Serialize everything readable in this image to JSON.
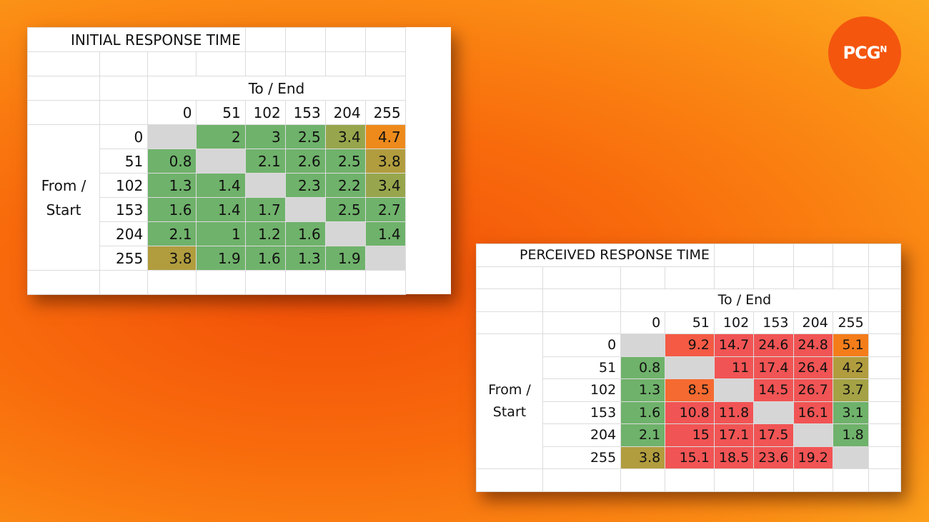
{
  "logo": {
    "text": "PCG",
    "superscript": "N"
  },
  "chart_data": [
    {
      "type": "heatmap",
      "title": "INITIAL RESPONSE TIME",
      "xlabel": "To / End",
      "ylabel": "From / Start",
      "x": [
        "0",
        "51",
        "102",
        "153",
        "204",
        "255"
      ],
      "y": [
        "0",
        "51",
        "102",
        "153",
        "204",
        "255"
      ],
      "values": [
        [
          null,
          2,
          3,
          2.5,
          3.4,
          4.7
        ],
        [
          0.8,
          null,
          2.1,
          2.6,
          2.5,
          3.8
        ],
        [
          1.3,
          1.4,
          null,
          2.3,
          2.2,
          3.4
        ],
        [
          1.6,
          1.4,
          1.7,
          null,
          2.5,
          2.7
        ],
        [
          2.1,
          1,
          1.2,
          1.6,
          null,
          1.4
        ],
        [
          3.8,
          1.9,
          1.6,
          1.3,
          1.9,
          null
        ]
      ],
      "colors": [
        [
          "#d6d6d6",
          "#6fb26b",
          "#6fb26b",
          "#6fb26b",
          "#97a64c",
          "#ee8a1c"
        ],
        [
          "#6fb26b",
          "#d6d6d6",
          "#6fb26b",
          "#6fb26b",
          "#6fb26b",
          "#b19d3e"
        ],
        [
          "#6fb26b",
          "#6fb26b",
          "#d6d6d6",
          "#6fb26b",
          "#6fb26b",
          "#97a64c"
        ],
        [
          "#6fb26b",
          "#6fb26b",
          "#6fb26b",
          "#d6d6d6",
          "#6fb26b",
          "#6fb26b"
        ],
        [
          "#6fb26b",
          "#6fb26b",
          "#6fb26b",
          "#6fb26b",
          "#d6d6d6",
          "#6fb26b"
        ],
        [
          "#b19d3e",
          "#6fb26b",
          "#6fb26b",
          "#6fb26b",
          "#6fb26b",
          "#d6d6d6"
        ]
      ]
    },
    {
      "type": "heatmap",
      "title": "PERCEIVED RESPONSE TIME",
      "xlabel": "To / End",
      "ylabel": "From / Start",
      "x": [
        "0",
        "51",
        "102",
        "153",
        "204",
        "255"
      ],
      "y": [
        "0",
        "51",
        "102",
        "153",
        "204",
        "255"
      ],
      "values": [
        [
          null,
          9.2,
          14.7,
          24.6,
          24.8,
          5.1
        ],
        [
          0.8,
          null,
          11,
          17.4,
          26.4,
          4.2
        ],
        [
          1.3,
          8.5,
          null,
          14.5,
          26.7,
          3.7
        ],
        [
          1.6,
          10.8,
          11.8,
          null,
          16.1,
          3.1
        ],
        [
          2.1,
          15,
          17.1,
          17.5,
          null,
          1.8
        ],
        [
          3.8,
          15.1,
          18.5,
          23.6,
          19.2,
          null
        ]
      ],
      "colors": [
        [
          "#d6d6d6",
          "#f45a44",
          "#f15454",
          "#f15454",
          "#f15454",
          "#f47d1a"
        ],
        [
          "#6fb26b",
          "#d6d6d6",
          "#f15454",
          "#f15454",
          "#f15454",
          "#b19d3e"
        ],
        [
          "#6fb26b",
          "#f56a30",
          "#d6d6d6",
          "#f15454",
          "#f15454",
          "#a4a245"
        ],
        [
          "#6fb26b",
          "#f15454",
          "#f15454",
          "#d6d6d6",
          "#f15454",
          "#6fb26b"
        ],
        [
          "#6fb26b",
          "#f15454",
          "#f15454",
          "#f15454",
          "#d6d6d6",
          "#6fb26b"
        ],
        [
          "#b19d3e",
          "#f15454",
          "#f15454",
          "#f15454",
          "#f15454",
          "#d6d6d6"
        ]
      ]
    }
  ]
}
